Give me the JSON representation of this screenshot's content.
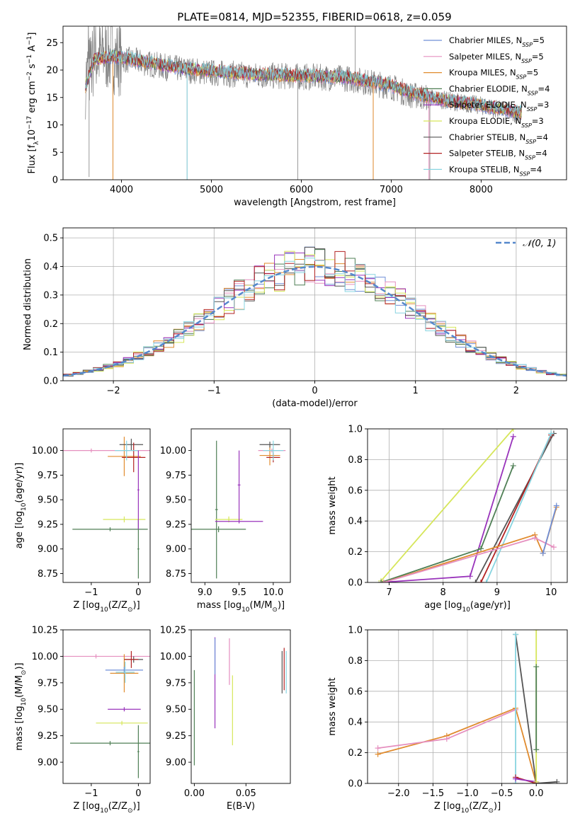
{
  "figure": {
    "title": "PLATE=0814, MJD=52355, FIBERID=0618, z=0.059"
  },
  "colors": {
    "Chabrier MILES": "#6f8fd8",
    "Salpeter MILES": "#e58fbf",
    "Kroupa MILES": "#e08b2e",
    "Chabrier ELODIE": "#4f7f55",
    "Salpeter ELODIE": "#9933bb",
    "Kroupa ELODIE": "#d6e65a",
    "Chabrier STELIB": "#555555",
    "Salpeter STELIB": "#b22222",
    "Kroupa STELIB": "#87d4e0",
    "spectrum": "#808080",
    "normal": "#5588cc"
  },
  "chart_data": [
    {
      "id": "spectrum",
      "type": "line",
      "title": "PLATE=0814, MJD=52355, FIBERID=0618, z=0.059",
      "xlabel": "wavelength [Angstrom, rest frame]",
      "ylabel_parts": [
        "Flux [f",
        "λ",
        "10",
        "−17",
        " erg cm",
        "−2",
        " s",
        "−1",
        " A",
        "−1",
        "]"
      ],
      "xlim": [
        3350,
        8950
      ],
      "ylim": [
        0,
        28
      ],
      "xticks": [
        4000,
        5000,
        6000,
        7000,
        8000
      ],
      "yticks": [
        0,
        5,
        10,
        15,
        20,
        25
      ],
      "legend_loc": "upper right",
      "legend": [
        {
          "name": "Chabrier MILES",
          "nssp": "5"
        },
        {
          "name": "Salpeter MILES",
          "nssp": "5"
        },
        {
          "name": "Kroupa MILES",
          "nssp": "5"
        },
        {
          "name": "Chabrier ELODIE",
          "nssp": "4"
        },
        {
          "name": "Salpeter ELODIE",
          "nssp": "3"
        },
        {
          "name": "Kroupa ELODIE",
          "nssp": "3"
        },
        {
          "name": "Chabrier STELIB",
          "nssp": "4"
        },
        {
          "name": "Salpeter STELIB",
          "nssp": "4"
        },
        {
          "name": "Kroupa STELIB",
          "nssp": "4"
        }
      ],
      "data_continuum": [
        [
          3600,
          18
        ],
        [
          3700,
          22
        ],
        [
          3800,
          23
        ],
        [
          3900,
          22.5
        ],
        [
          4000,
          22
        ],
        [
          4200,
          21.5
        ],
        [
          4500,
          20.5
        ],
        [
          5000,
          19.5
        ],
        [
          5500,
          19
        ],
        [
          6000,
          18.8
        ],
        [
          6500,
          18.5
        ],
        [
          7000,
          17
        ],
        [
          7200,
          15.5
        ],
        [
          7400,
          15
        ],
        [
          7600,
          14.5
        ],
        [
          7800,
          14
        ],
        [
          8000,
          13.5
        ],
        [
          8200,
          12.8
        ],
        [
          8400,
          12
        ]
      ],
      "model_continuum": [
        [
          3600,
          17
        ],
        [
          3700,
          22
        ],
        [
          3900,
          22.5
        ],
        [
          4100,
          22
        ],
        [
          4500,
          20.8
        ],
        [
          5000,
          19.8
        ],
        [
          5500,
          19.2
        ],
        [
          6000,
          19
        ],
        [
          6500,
          18.7
        ],
        [
          7000,
          17.2
        ],
        [
          7200,
          16
        ],
        [
          7400,
          15.2
        ],
        [
          7600,
          14.5
        ],
        [
          7800,
          14
        ],
        [
          8000,
          13.6
        ],
        [
          8200,
          13
        ],
        [
          8400,
          12.3
        ]
      ]
    },
    {
      "id": "residual_hist",
      "type": "line",
      "xlabel": "(data-model)/error",
      "ylabel": "Normed distribution",
      "xlim": [
        -2.5,
        2.5
      ],
      "ylim": [
        0,
        0.535
      ],
      "xticks": [
        -2,
        -1,
        0,
        1,
        2
      ],
      "yticks": [
        0.0,
        0.1,
        0.2,
        0.3,
        0.4,
        0.5
      ],
      "legend": "𝒩(0, 1)",
      "legend_loc": "upper right",
      "grid": true
    },
    {
      "id": "age_vs_Z",
      "type": "scatter",
      "xlabel_parts": [
        "Z [log",
        "10",
        "(Z/Z",
        "⊙",
        ")]"
      ],
      "ylabel_parts": [
        "age  [log",
        "10",
        "(age/yr)]"
      ],
      "xlim": [
        -1.6,
        0.25
      ],
      "ylim": [
        8.66,
        10.22
      ],
      "xticks": [
        -1,
        0
      ],
      "yticks": [
        8.75,
        9.0,
        9.25,
        9.5,
        9.75,
        10.0
      ],
      "points": [
        {
          "model": "Salpeter MILES",
          "x": -1.0,
          "xerr": 1.55,
          "y": 10.0,
          "yerr": 0.02
        },
        {
          "model": "Kroupa MILES",
          "x": -0.3,
          "xerr": 0.35,
          "y": 9.94,
          "yerr": 0.2
        },
        {
          "model": "Chabrier ELODIE",
          "x": -0.6,
          "xerr": 0.8,
          "y": 9.2,
          "yerr": 0.02
        },
        {
          "model": "Kroupa ELODIE",
          "x": -0.3,
          "xerr": 0.45,
          "y": 9.3,
          "yerr": 0.03
        },
        {
          "model": "Chabrier STELIB",
          "x": -0.15,
          "xerr": 0.25,
          "y": 10.06,
          "yerr": 0.06
        },
        {
          "model": "Salpeter STELIB",
          "x": -0.1,
          "xerr": 0.25,
          "y": 9.93,
          "yerr": 0.15
        },
        {
          "model": "Kroupa STELIB",
          "x": -0.25,
          "xerr": 0.25,
          "y": 10.0,
          "yerr": 0.1
        },
        {
          "model": "Chabrier ELODIE",
          "x": 0.0,
          "xerr": 0.02,
          "y": 9.0,
          "yerr": 0.3
        },
        {
          "model": "Salpeter ELODIE",
          "x": 0.0,
          "xerr": 0.02,
          "y": 9.6,
          "yerr": 0.4
        }
      ]
    },
    {
      "id": "age_vs_mass",
      "type": "scatter",
      "xlabel_parts": [
        "mass [log",
        "10",
        "(M/M",
        "⊙",
        ")]"
      ],
      "xlim": [
        8.8,
        10.25
      ],
      "ylim": [
        8.66,
        10.22
      ],
      "xticks": [
        9.0,
        9.5,
        10.0
      ],
      "yticks": [
        8.75,
        9.0,
        9.25,
        9.5,
        9.75,
        10.0
      ],
      "points": [
        {
          "model": "Chabrier ELODIE",
          "x": 9.2,
          "xerr": 0.4,
          "y": 9.2,
          "yerr": 0.03
        },
        {
          "model": "Chabrier ELODIE",
          "x": 9.17,
          "xerr": 0.02,
          "y": 9.4,
          "yerr": 0.7
        },
        {
          "model": "Kroupa ELODIE",
          "x": 9.35,
          "xerr": 0.2,
          "y": 9.3,
          "yerr": 0.03
        },
        {
          "model": "Salpeter ELODIE",
          "x": 9.5,
          "xerr": 0.02,
          "y": 9.65,
          "yerr": 0.35
        },
        {
          "model": "Salpeter ELODIE",
          "x": 9.5,
          "xerr": 0.35,
          "y": 9.28,
          "yerr": 0.02
        },
        {
          "model": "Salpeter MILES",
          "x": 9.98,
          "xerr": 0.2,
          "y": 10.0,
          "yerr": 0.02
        },
        {
          "model": "Kroupa MILES",
          "x": 9.95,
          "xerr": 0.15,
          "y": 9.95,
          "yerr": 0.1
        },
        {
          "model": "Chabrier STELIB",
          "x": 9.95,
          "xerr": 0.15,
          "y": 10.06,
          "yerr": 0.03
        },
        {
          "model": "Salpeter STELIB",
          "x": 10.0,
          "xerr": 0.1,
          "y": 9.93,
          "yerr": 0.05
        },
        {
          "model": "Kroupa STELIB",
          "x": 10.0,
          "xerr": 0.15,
          "y": 10.0,
          "yerr": 0.1
        }
      ]
    },
    {
      "id": "weight_vs_age",
      "type": "line",
      "xlabel_parts": [
        "age  [log",
        "10",
        "(age/yr)]"
      ],
      "ylabel": "mass weight",
      "xlim": [
        6.6,
        10.3
      ],
      "ylim": [
        0,
        1
      ],
      "xticks": [
        7,
        8,
        9,
        10
      ],
      "yticks": [
        0.0,
        0.2,
        0.4,
        0.6,
        0.8,
        1.0
      ],
      "grid": true,
      "series": [
        {
          "model": "Kroupa ELODIE",
          "x": [
            6.85,
            9.3
          ],
          "y": [
            0.01,
            1.0
          ]
        },
        {
          "model": "Salpeter ELODIE",
          "x": [
            6.85,
            8.5,
            9.3
          ],
          "y": [
            0.0,
            0.04,
            0.95
          ]
        },
        {
          "model": "Chabrier ELODIE",
          "x": [
            6.85,
            8.7,
            9.3
          ],
          "y": [
            0.0,
            0.22,
            0.76
          ]
        },
        {
          "model": "Chabrier STELIB",
          "x": [
            8.6,
            10.05
          ],
          "y": [
            0.0,
            0.97
          ]
        },
        {
          "model": "Salpeter STELIB",
          "x": [
            8.7,
            10.0
          ],
          "y": [
            0.0,
            0.96
          ]
        },
        {
          "model": "Kroupa STELIB",
          "x": [
            8.8,
            10.0
          ],
          "y": [
            0.0,
            0.97
          ]
        },
        {
          "model": "Kroupa MILES",
          "x": [
            6.9,
            9.7,
            9.85,
            10.1
          ],
          "y": [
            0.0,
            0.31,
            0.19,
            0.49
          ]
        },
        {
          "model": "Salpeter MILES",
          "x": [
            6.9,
            9.7,
            10.05
          ],
          "y": [
            0.0,
            0.29,
            0.23
          ]
        },
        {
          "model": "Chabrier MILES",
          "x": [
            9.85,
            10.1
          ],
          "y": [
            0.19,
            0.5
          ]
        }
      ]
    },
    {
      "id": "mass_vs_Z",
      "type": "scatter",
      "xlabel_parts": [
        "Z [log",
        "10",
        "(Z/Z",
        "⊙",
        ")]"
      ],
      "ylabel_parts": [
        "mass [log",
        "10",
        "(M/M",
        "⊙",
        ")]"
      ],
      "xlim": [
        -1.6,
        0.25
      ],
      "ylim": [
        8.8,
        10.25
      ],
      "xticks": [
        -1,
        0
      ],
      "yticks": [
        9.0,
        9.25,
        9.5,
        9.75,
        10.0,
        10.25
      ],
      "points": [
        {
          "model": "Salpeter MILES",
          "x": -0.9,
          "xerr": 1.4,
          "y": 10.0,
          "yerr": 0.02
        },
        {
          "model": "Kroupa MILES",
          "x": -0.3,
          "xerr": 0.3,
          "y": 9.84,
          "yerr": 0.18
        },
        {
          "model": "Chabrier MILES",
          "x": -0.3,
          "xerr": 0.4,
          "y": 9.87,
          "yerr": 0.03
        },
        {
          "model": "Salpeter ELODIE",
          "x": -0.3,
          "xerr": 0.35,
          "y": 9.5,
          "yerr": 0.02
        },
        {
          "model": "Kroupa ELODIE",
          "x": -0.35,
          "xerr": 0.55,
          "y": 9.37,
          "yerr": 0.02
        },
        {
          "model": "Chabrier ELODIE",
          "x": -0.6,
          "xerr": 0.85,
          "y": 9.18,
          "yerr": 0.02
        },
        {
          "model": "Chabrier ELODIE",
          "x": 0.0,
          "xerr": 0.02,
          "y": 9.1,
          "yerr": 0.25
        },
        {
          "model": "Chabrier STELIB",
          "x": -0.1,
          "xerr": 0.2,
          "y": 9.97,
          "yerr": 0.03
        },
        {
          "model": "Salpeter STELIB",
          "x": -0.15,
          "xerr": 0.15,
          "y": 9.97,
          "yerr": 0.08
        },
        {
          "model": "Kroupa STELIB",
          "x": -0.28,
          "xerr": 0.2,
          "y": 9.85,
          "yerr": 0.1
        }
      ]
    },
    {
      "id": "mass_vs_EBV",
      "type": "scatter",
      "xlabel": "E(B-V)",
      "xlim": [
        -0.003,
        0.093
      ],
      "ylim": [
        8.8,
        10.25
      ],
      "xticks": [
        0.0,
        0.05
      ],
      "yticks": [
        9.0,
        9.25,
        9.5,
        9.75,
        10.0,
        10.25
      ],
      "points": [
        {
          "model": "Chabrier ELODIE",
          "x": 0.0,
          "xerr": 0.0,
          "y": 9.42,
          "yerr": 0.45
        },
        {
          "model": "Salpeter ELODIE",
          "x": 0.02,
          "xerr": 0.0,
          "y": 9.75,
          "yerr": 0.43
        },
        {
          "model": "Chabrier MILES",
          "x": 0.02,
          "xerr": 0.0,
          "y": 10.0,
          "yerr": 0.17
        },
        {
          "model": "Salpeter MILES",
          "x": 0.034,
          "xerr": 0.0,
          "y": 9.95,
          "yerr": 0.22
        },
        {
          "model": "Kroupa ELODIE",
          "x": 0.037,
          "xerr": 0.0,
          "y": 9.49,
          "yerr": 0.33
        },
        {
          "model": "Chabrier STELIB",
          "x": 0.085,
          "xerr": 0.0,
          "y": 9.85,
          "yerr": 0.2
        },
        {
          "model": "Salpeter STELIB",
          "x": 0.087,
          "xerr": 0.0,
          "y": 9.88,
          "yerr": 0.2
        },
        {
          "model": "Kroupa STELIB",
          "x": 0.089,
          "xerr": 0.0,
          "y": 9.85,
          "yerr": 0.2
        }
      ]
    },
    {
      "id": "weight_vs_Z",
      "type": "line",
      "xlabel_parts": [
        "Z [log",
        "10",
        "(Z/Z",
        "⊙",
        ")]"
      ],
      "ylabel": "mass weight",
      "xlim": [
        -2.45,
        0.45
      ],
      "ylim": [
        0,
        1
      ],
      "xticks": [
        -2.0,
        -1.5,
        -1.0,
        -0.5,
        0.0
      ],
      "yticks": [
        0.0,
        0.2,
        0.4,
        0.6,
        0.8,
        1.0
      ],
      "grid": true,
      "series": [
        {
          "model": "Kroupa MILES",
          "x": [
            -2.3,
            -1.3,
            -0.3,
            0.0
          ],
          "y": [
            0.19,
            0.31,
            0.49,
            0.0
          ]
        },
        {
          "model": "Salpeter MILES",
          "x": [
            -2.3,
            -1.3,
            -0.3
          ],
          "y": [
            0.23,
            0.29,
            0.48
          ]
        },
        {
          "model": "Chabrier STELIB",
          "x": [
            -0.3,
            0.0,
            0.3
          ],
          "y": [
            0.97,
            0.0,
            0.01
          ]
        },
        {
          "model": "Kroupa STELIB",
          "x": [
            -0.3,
            -0.3
          ],
          "y": [
            0.0,
            0.97
          ]
        },
        {
          "model": "Salpeter STELIB",
          "x": [
            -0.3,
            0.0
          ],
          "y": [
            0.04,
            0.0
          ]
        },
        {
          "model": "Salpeter ELODIE",
          "x": [
            -0.3,
            0.0
          ],
          "y": [
            0.03,
            0.01
          ]
        },
        {
          "model": "Kroupa ELODIE",
          "x": [
            0.0,
            0.0
          ],
          "y": [
            0.01,
            1.0
          ]
        },
        {
          "model": "Chabrier ELODIE",
          "x": [
            0.0,
            0.0
          ],
          "y": [
            0.22,
            0.76
          ]
        }
      ]
    }
  ]
}
